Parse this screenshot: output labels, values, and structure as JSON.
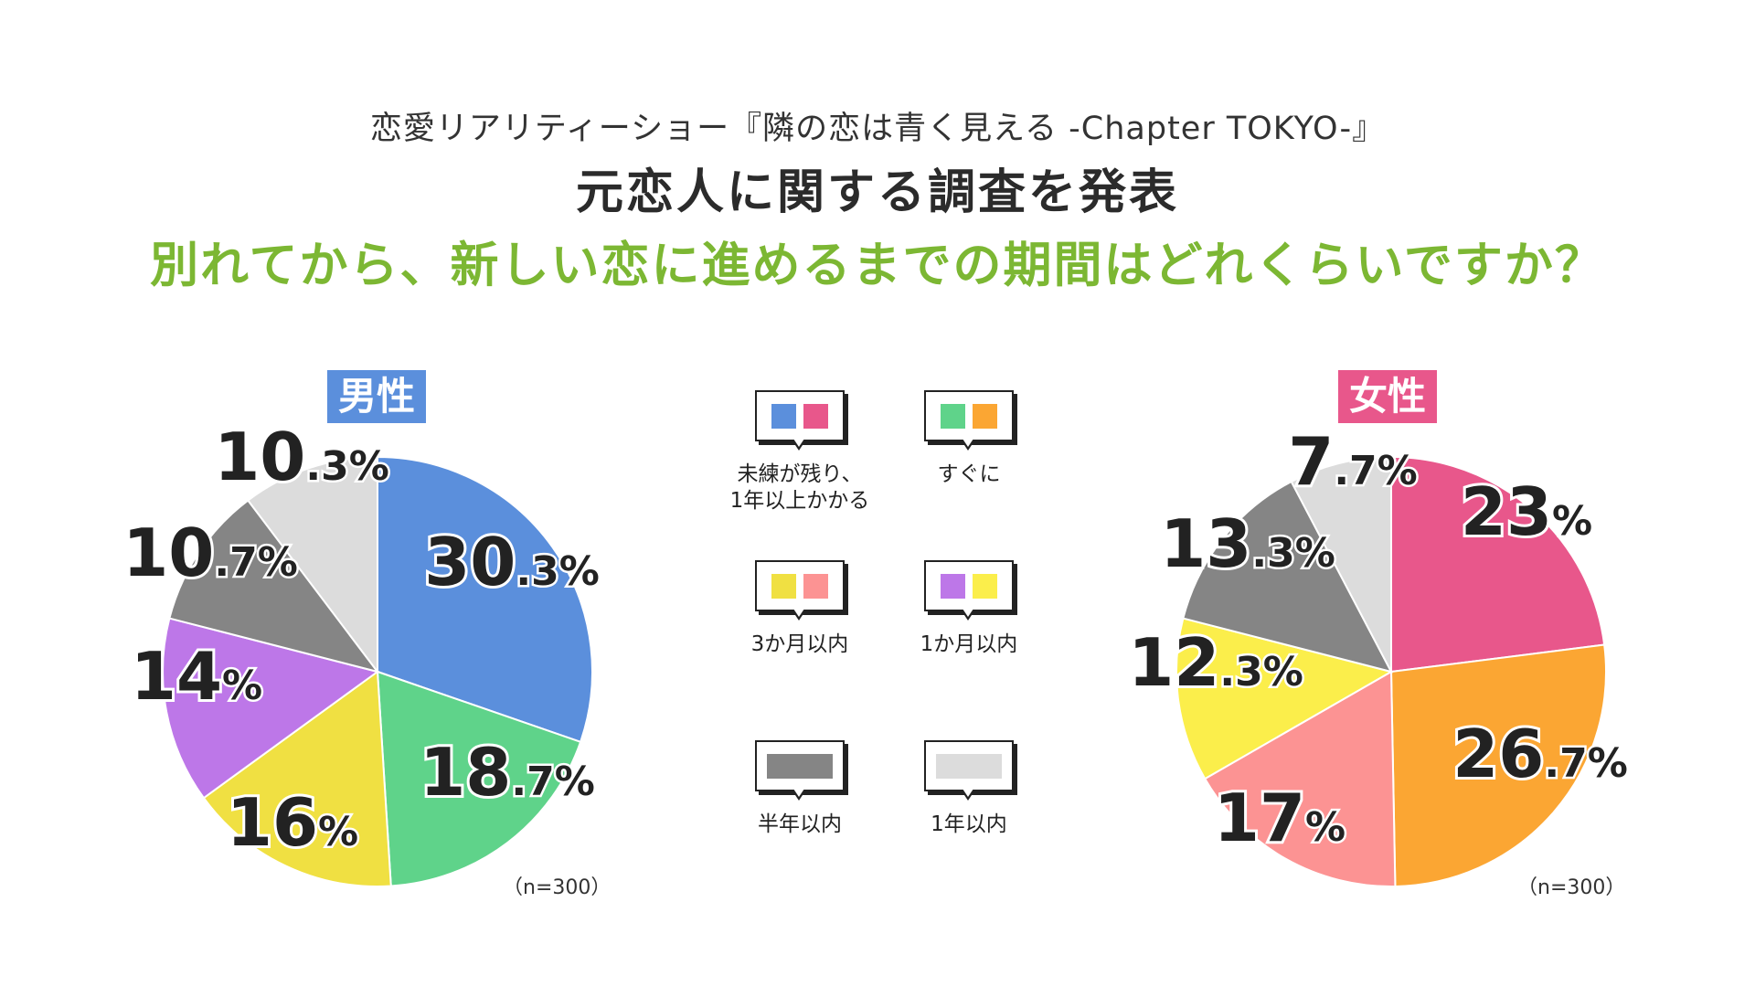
{
  "header": {
    "kicker": "恋愛リアリティーショー『隣の恋は青く見える -Chapter TOKYO-』",
    "title": "元恋人に関する調査を発表",
    "question": "別れてから、新しい恋に進めるまでの期間はどれくらいですか？"
  },
  "legend": [
    {
      "label": "未練が残り、\n1年以上かかる",
      "colors": [
        "#5b8fdc",
        "#e8578b"
      ]
    },
    {
      "label": "すぐに",
      "colors": [
        "#5fd38a",
        "#fba633"
      ]
    },
    {
      "label": "3か月以内",
      "colors": [
        "#f0e042",
        "#fc9393"
      ]
    },
    {
      "label": "1か月以内",
      "colors": [
        "#bd77e8",
        "#fbee4b"
      ]
    },
    {
      "label": "半年以内",
      "colors": [
        "#858585"
      ]
    },
    {
      "label": "1年以内",
      "colors": [
        "#dcdcdc"
      ]
    }
  ],
  "chart_data": [
    {
      "type": "pie",
      "title": "男性",
      "title_color": "#5b8fdc",
      "note": "（n=300）",
      "unit": "%",
      "slices": [
        {
          "category": "未練が残り、1年以上かかる",
          "value": 30.3,
          "int": "30",
          "frac": ".3",
          "color": "#5b8fdc"
        },
        {
          "category": "すぐに",
          "value": 18.7,
          "int": "18",
          "frac": ".7",
          "color": "#5fd38a"
        },
        {
          "category": "3か月以内",
          "value": 16,
          "int": "16",
          "frac": "",
          "color": "#f0e042"
        },
        {
          "category": "1か月以内",
          "value": 14,
          "int": "14",
          "frac": "",
          "color": "#bd77e8"
        },
        {
          "category": "半年以内",
          "value": 10.7,
          "int": "10",
          "frac": ".7",
          "color": "#858585"
        },
        {
          "category": "1年以内",
          "value": 10.3,
          "int": "10",
          "frac": ".3",
          "color": "#dcdcdc"
        }
      ]
    },
    {
      "type": "pie",
      "title": "女性",
      "title_color": "#e8578b",
      "note": "（n=300）",
      "unit": "%",
      "slices": [
        {
          "category": "未練が残り、1年以上かかる",
          "value": 23,
          "int": "23",
          "frac": "",
          "color": "#e8578b"
        },
        {
          "category": "すぐに",
          "value": 26.7,
          "int": "26",
          "frac": ".7",
          "color": "#fba633"
        },
        {
          "category": "3か月以内",
          "value": 17,
          "int": "17",
          "frac": "",
          "color": "#fc9393"
        },
        {
          "category": "1か月以内",
          "value": 12.3,
          "int": "12",
          "frac": ".3",
          "color": "#fbee4b"
        },
        {
          "category": "半年以内",
          "value": 13.3,
          "int": "13",
          "frac": ".3",
          "color": "#858585"
        },
        {
          "category": "1年以内",
          "value": 7.7,
          "int": "7",
          "frac": ".7",
          "color": "#dcdcdc"
        }
      ]
    }
  ]
}
